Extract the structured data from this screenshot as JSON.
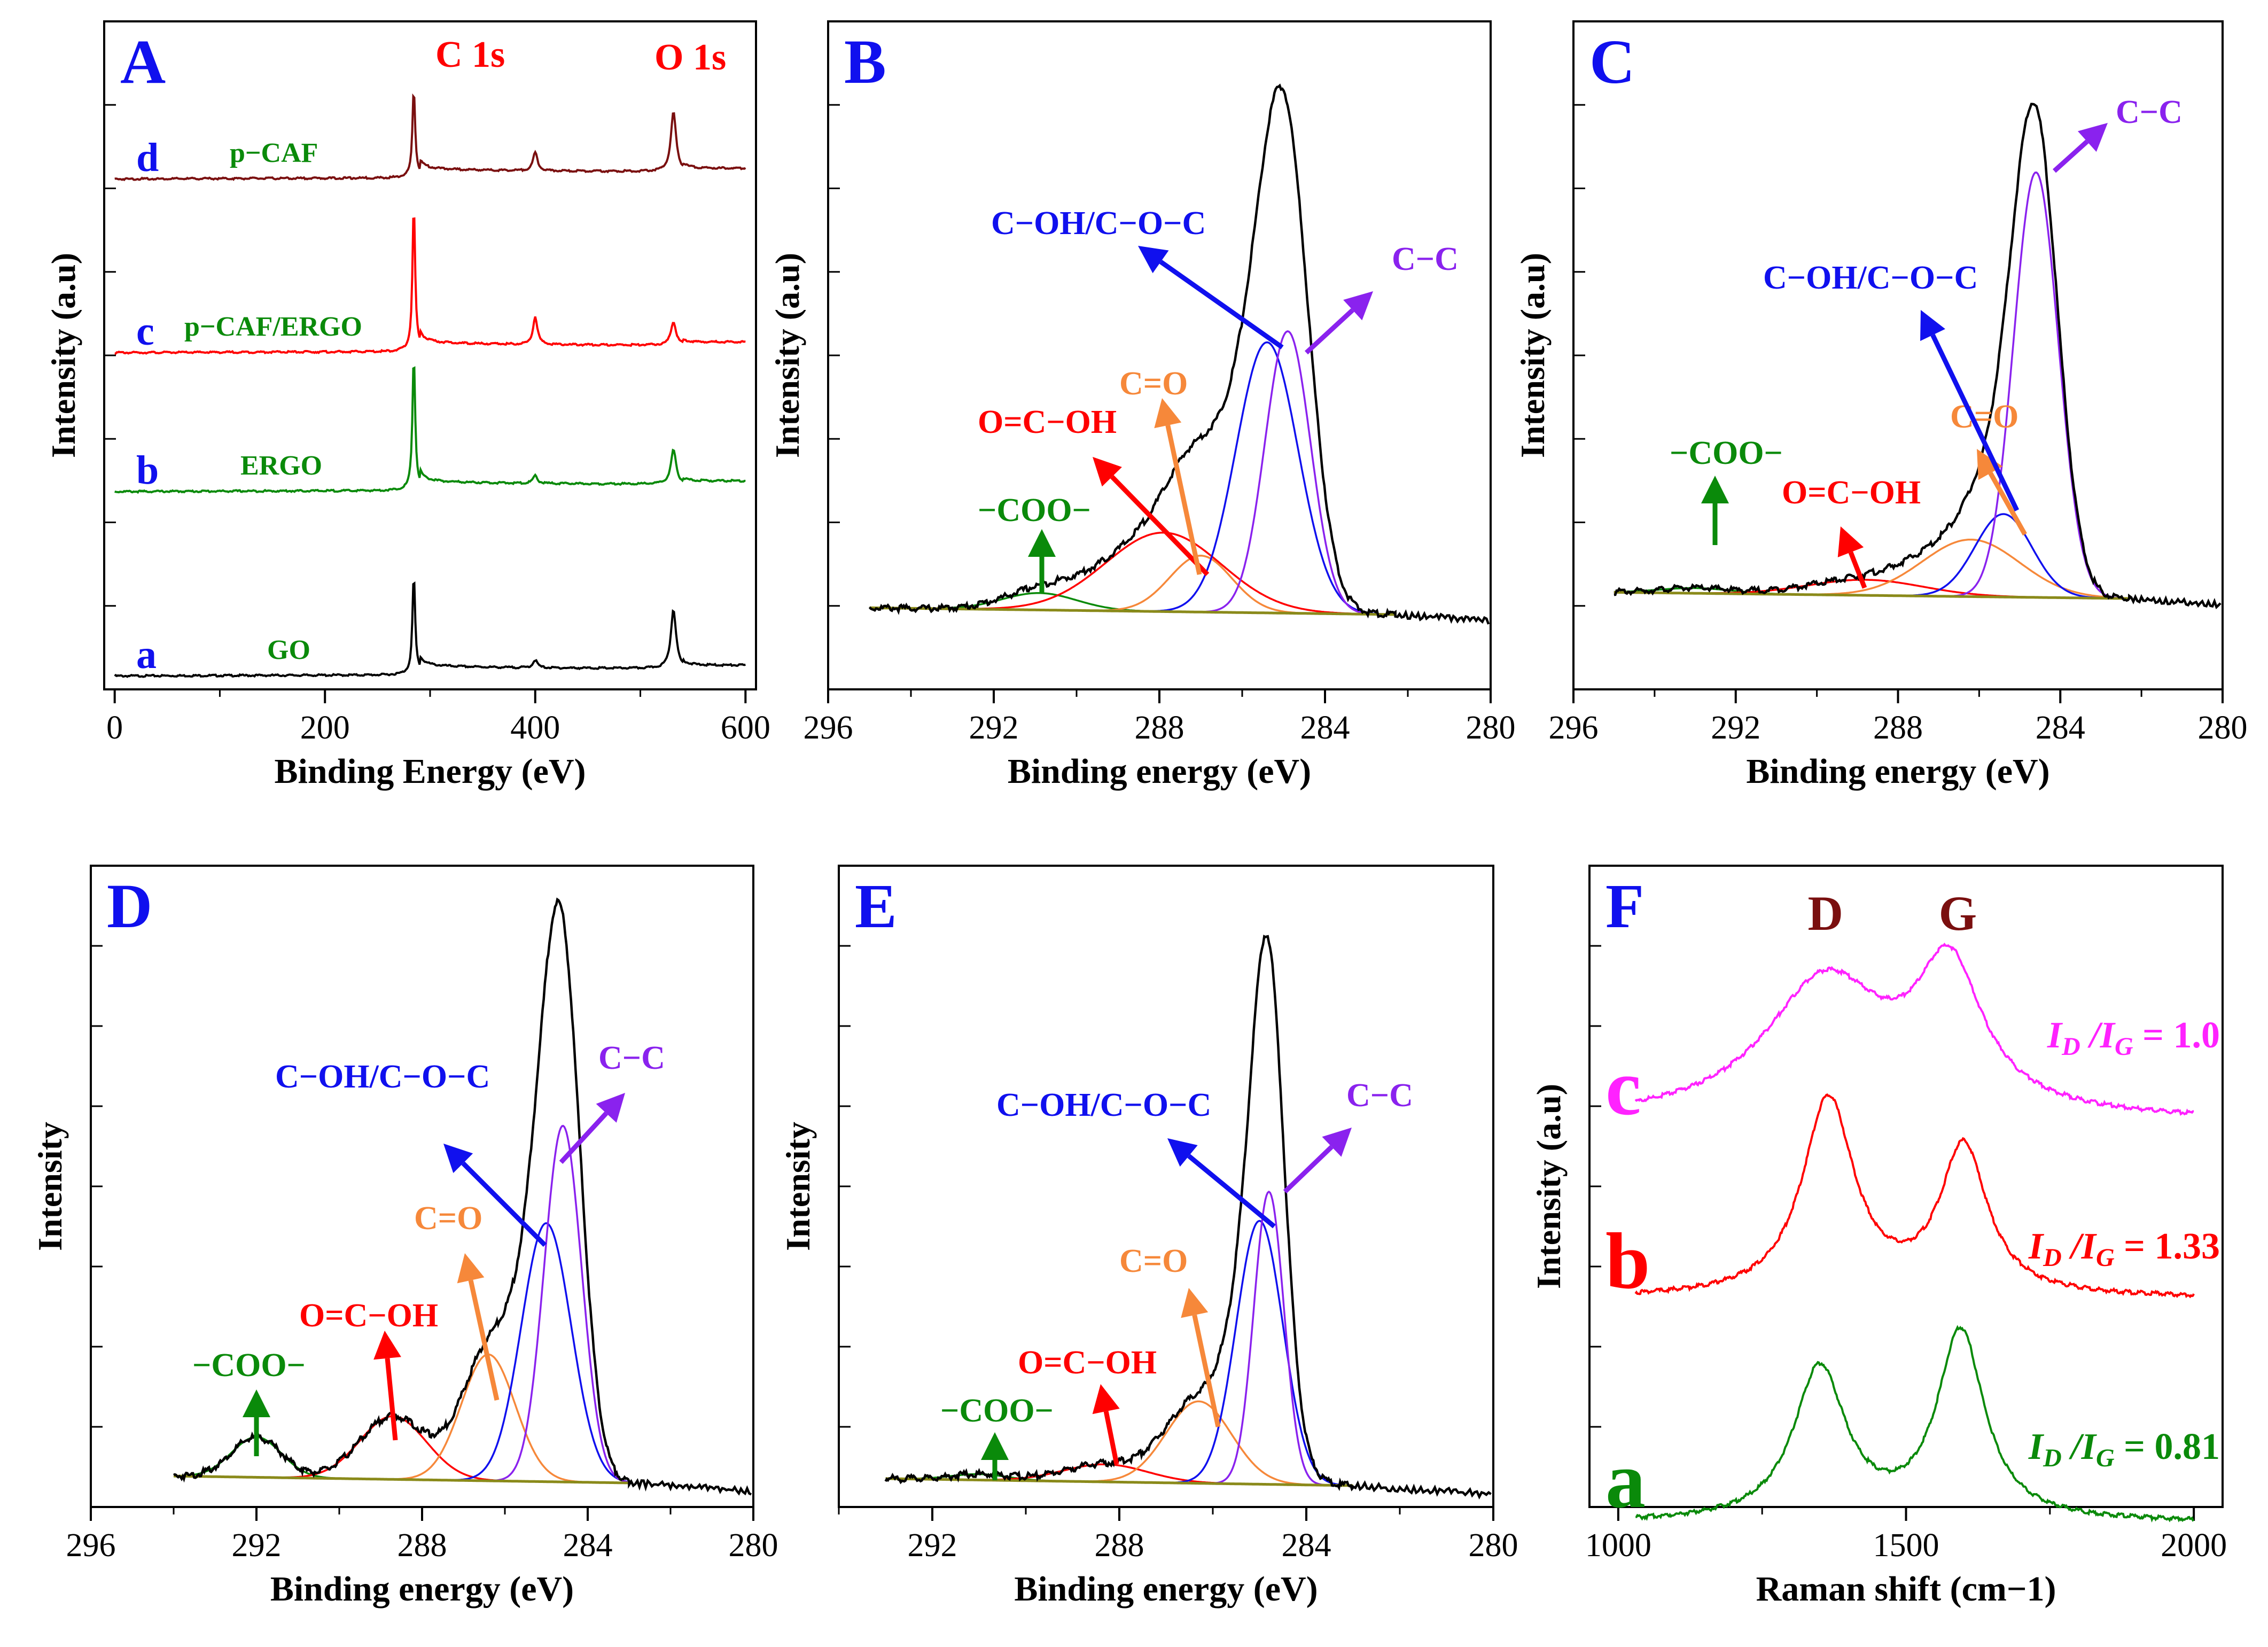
{
  "colors": {
    "black": "#000000",
    "red": "#ff0000",
    "green": "#0a8a0a",
    "blue": "#1010ee",
    "violet": "#8a22ee",
    "orange": "#f6883a",
    "darkred": "#7a0f0f",
    "magenta": "#ff22ff",
    "olive": "#8a8a1a",
    "panel_letter": "#1010ee"
  },
  "chart_data": [
    {
      "panel": "A",
      "type": "line",
      "title": "",
      "xlabel": "Binding Energy (eV)",
      "ylabel": "Intensity (a.u)",
      "xlim": [
        -10,
        610
      ],
      "xticks": [
        0,
        200,
        400,
        600
      ],
      "grid": false,
      "peak_labels": [
        "C 1s",
        "O 1s"
      ],
      "series": [
        {
          "letter": "a",
          "name": "GO",
          "offset": 0.0,
          "color": "black"
        },
        {
          "letter": "b",
          "name": "ERGO",
          "offset": 1.0,
          "color": "green"
        },
        {
          "letter": "c",
          "name": "p−CAF/ERGO",
          "offset": 2.0,
          "color": "red"
        },
        {
          "letter": "d",
          "name": "p−CAF",
          "offset": 3.0,
          "color": "darkred"
        }
      ],
      "peaks": {
        "x": [
          284.5,
          400,
          531.5
        ],
        "GO": [
          0.62,
          0.05,
          0.38
        ],
        "ERGO": [
          0.85,
          0.05,
          0.22
        ],
        "p−CAF/ERGO": [
          0.92,
          0.18,
          0.15
        ],
        "p−CAF": [
          0.55,
          0.12,
          0.38
        ]
      }
    },
    {
      "panel": "B",
      "type": "line",
      "xlabel": "Binding energy (eV)",
      "ylabel": "Intensity (a.u)",
      "xlim": [
        296,
        280
      ],
      "xticks": [
        296,
        292,
        288,
        284,
        280
      ],
      "grid": false,
      "components": [
        {
          "label": "−COO−",
          "center": 290.9,
          "height": 0.03,
          "color": "green"
        },
        {
          "label": "O=C−OH",
          "center": 287.9,
          "height": 0.14,
          "color": "red"
        },
        {
          "label": "C=O",
          "center": 287.0,
          "height": 0.1,
          "color": "orange"
        },
        {
          "label": "C−OH/C−O−C",
          "center": 285.4,
          "height": 0.48,
          "color": "blue"
        },
        {
          "label": "C−C",
          "center": 284.9,
          "height": 0.5,
          "color": "violet"
        }
      ],
      "envelope_peak": {
        "x": 285.0,
        "y": 1.0
      }
    },
    {
      "panel": "C",
      "type": "line",
      "xlabel": "Binding energy (eV)",
      "ylabel": "Intensity (a.u)",
      "xlim": [
        296,
        280
      ],
      "xticks": [
        296,
        292,
        288,
        284,
        280
      ],
      "grid": false,
      "components": [
        {
          "label": "−COO−",
          "center": 293.0,
          "height": 0.01,
          "color": "green"
        },
        {
          "label": "O=C−OH",
          "center": 288.8,
          "height": 0.03,
          "color": "red"
        },
        {
          "label": "C=O",
          "center": 286.2,
          "height": 0.11,
          "color": "orange"
        },
        {
          "label": "C−OH/C−O−C",
          "center": 285.4,
          "height": 0.16,
          "color": "blue"
        },
        {
          "label": "C−C",
          "center": 284.6,
          "height": 0.82,
          "color": "violet"
        }
      ],
      "envelope_peak": {
        "x": 284.7,
        "y": 1.0
      }
    },
    {
      "panel": "D",
      "type": "line",
      "xlabel": "Binding energy (eV)",
      "ylabel": "Intensity",
      "xlim": [
        296,
        280
      ],
      "xticks": [
        296,
        292,
        288,
        284,
        280
      ],
      "grid": false,
      "components": [
        {
          "label": "−COO−",
          "center": 292.0,
          "height": 0.07,
          "color": "green"
        },
        {
          "label": "O=C−OH",
          "center": 288.7,
          "height": 0.11,
          "color": "red"
        },
        {
          "label": "C=O",
          "center": 286.4,
          "height": 0.22,
          "color": "orange"
        },
        {
          "label": "C−OH/C−O−C",
          "center": 285.0,
          "height": 0.45,
          "color": "blue"
        },
        {
          "label": "C−C",
          "center": 284.6,
          "height": 0.62,
          "color": "violet"
        }
      ],
      "envelope_peak": {
        "x": 284.7,
        "y": 1.0
      }
    },
    {
      "panel": "E",
      "type": "line",
      "xlabel": "Binding energy (eV)",
      "ylabel": "Intensity",
      "xlim": [
        294,
        280
      ],
      "xticks": [
        292,
        288,
        284,
        280
      ],
      "grid": false,
      "components": [
        {
          "label": "−COO−",
          "center": 291.0,
          "height": 0.01,
          "color": "green"
        },
        {
          "label": "O=C−OH",
          "center": 288.3,
          "height": 0.03,
          "color": "red"
        },
        {
          "label": "C=O",
          "center": 286.3,
          "height": 0.14,
          "color": "orange"
        },
        {
          "label": "C−OH/C−O−C",
          "center": 285.0,
          "height": 0.45,
          "color": "blue"
        },
        {
          "label": "C−C",
          "center": 284.8,
          "height": 0.5,
          "color": "violet"
        }
      ],
      "envelope_peak": {
        "x": 284.8,
        "y": 1.0
      }
    },
    {
      "panel": "F",
      "type": "line",
      "xlabel": "Raman shift (cm−1)",
      "ylabel": "Intensity (a.u)",
      "xlim": [
        950,
        2050
      ],
      "xticks": [
        1000,
        1500,
        2000
      ],
      "grid": false,
      "band_labels": [
        "D",
        "G"
      ],
      "series": [
        {
          "letter": "a",
          "ratio_label": "= 0.81",
          "offset": 0.0,
          "color": "green",
          "D": 1350,
          "G": 1595,
          "D_height": 0.68,
          "G_height": 0.84
        },
        {
          "letter": "b",
          "ratio_label": "= 1.33",
          "offset": 1.0,
          "color": "red",
          "D": 1365,
          "G": 1600,
          "D_height": 0.88,
          "G_height": 0.66
        },
        {
          "letter": "c",
          "ratio_label": "= 1.0",
          "offset": 2.0,
          "color": "magenta",
          "D": 1360,
          "G": 1575,
          "D_height": 0.62,
          "G_height": 0.62
        }
      ],
      "ratio_prefix": "I",
      "ratio_sub_D": "D",
      "ratio_sub_G": "G"
    }
  ]
}
